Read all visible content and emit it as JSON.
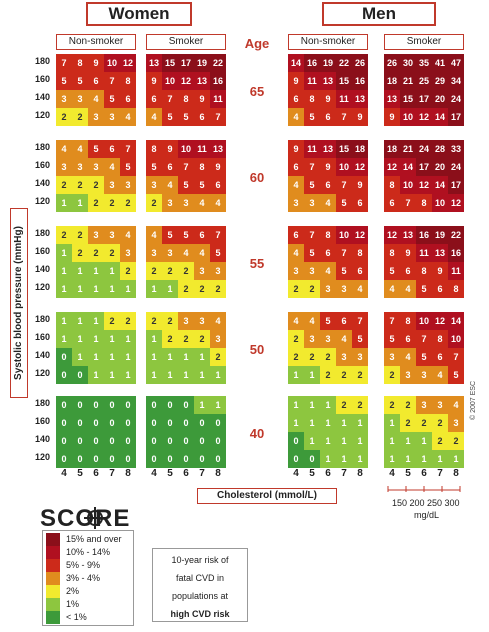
{
  "header": {
    "women": "Women",
    "men": "Men",
    "age_title": "Age"
  },
  "subheaders": {
    "women_nonsmoker": "Non-smoker",
    "women_smoker": "Smoker",
    "men_nonsmoker": "Non-smoker",
    "men_smoker": "Smoker"
  },
  "ylabel": "Systolic blood pressure (mmHg)",
  "xlabel": "Cholesterol (mmol/L)",
  "mgdl": {
    "values": "150 200 250 300",
    "unit": "mg/dL"
  },
  "copyright": "© 2007 ESC",
  "logo": "SCORE",
  "legend": [
    {
      "label": "15% and over",
      "color": "#8b0f1a"
    },
    {
      "label": "10% - 14%",
      "color": "#b01020"
    },
    {
      "label": "5% - 9%",
      "color": "#cc2a1a"
    },
    {
      "label": "3% - 4%",
      "color": "#e08c1e"
    },
    {
      "label": "2%",
      "color": "#f2ea2e"
    },
    {
      "label": "1%",
      "color": "#8dc63f"
    },
    {
      "label": "< 1%",
      "color": "#3d9a3a"
    }
  ],
  "note": [
    "10-year risk of",
    "fatal CVD in",
    "populations at",
    "high CVD risk"
  ],
  "chart_data": {
    "type": "heatmap",
    "cholesterol": [
      "4",
      "5",
      "6",
      "7",
      "8"
    ],
    "systolic_bp": [
      "180",
      "160",
      "140",
      "120"
    ],
    "ages": [
      "65",
      "60",
      "55",
      "50",
      "40"
    ],
    "groups": [
      "women_nonsmoker",
      "women_smoker",
      "men_nonsmoker",
      "men_smoker"
    ],
    "values": {
      "65": {
        "women_nonsmoker": [
          [
            7,
            8,
            9,
            10,
            12
          ],
          [
            5,
            5,
            6,
            7,
            8
          ],
          [
            3,
            3,
            4,
            5,
            6
          ],
          [
            2,
            2,
            3,
            3,
            4
          ]
        ],
        "women_smoker": [
          [
            13,
            15,
            17,
            19,
            22
          ],
          [
            9,
            10,
            12,
            13,
            16
          ],
          [
            6,
            7,
            8,
            9,
            11
          ],
          [
            4,
            5,
            5,
            6,
            7
          ]
        ],
        "men_nonsmoker": [
          [
            14,
            16,
            19,
            22,
            26
          ],
          [
            9,
            11,
            13,
            15,
            16
          ],
          [
            6,
            8,
            9,
            11,
            13
          ],
          [
            4,
            5,
            6,
            7,
            9
          ]
        ],
        "men_smoker": [
          [
            26,
            30,
            35,
            41,
            47
          ],
          [
            18,
            21,
            25,
            29,
            34
          ],
          [
            13,
            15,
            17,
            20,
            24
          ],
          [
            9,
            10,
            12,
            14,
            17
          ]
        ]
      },
      "60": {
        "women_nonsmoker": [
          [
            4,
            4,
            5,
            6,
            7
          ],
          [
            3,
            3,
            3,
            4,
            5
          ],
          [
            2,
            2,
            2,
            3,
            3
          ],
          [
            1,
            1,
            2,
            2,
            2
          ]
        ],
        "women_smoker": [
          [
            8,
            9,
            10,
            11,
            13
          ],
          [
            5,
            6,
            7,
            8,
            9
          ],
          [
            3,
            4,
            5,
            5,
            6
          ],
          [
            2,
            3,
            3,
            4,
            4
          ]
        ],
        "men_nonsmoker": [
          [
            9,
            11,
            13,
            15,
            18
          ],
          [
            6,
            7,
            9,
            10,
            12
          ],
          [
            4,
            5,
            6,
            7,
            9
          ],
          [
            3,
            3,
            4,
            5,
            6
          ]
        ],
        "men_smoker": [
          [
            18,
            21,
            24,
            28,
            33
          ],
          [
            12,
            14,
            17,
            20,
            24
          ],
          [
            8,
            10,
            12,
            14,
            17
          ],
          [
            6,
            7,
            8,
            10,
            12
          ]
        ]
      },
      "55": {
        "women_nonsmoker": [
          [
            2,
            2,
            3,
            3,
            4
          ],
          [
            1,
            2,
            2,
            2,
            3
          ],
          [
            1,
            1,
            1,
            1,
            2
          ],
          [
            1,
            1,
            1,
            1,
            1
          ]
        ],
        "women_smoker": [
          [
            4,
            5,
            5,
            6,
            7
          ],
          [
            3,
            3,
            4,
            4,
            5
          ],
          [
            2,
            2,
            2,
            3,
            3
          ],
          [
            1,
            1,
            2,
            2,
            2
          ]
        ],
        "men_nonsmoker": [
          [
            6,
            7,
            8,
            10,
            12
          ],
          [
            4,
            5,
            6,
            7,
            8
          ],
          [
            3,
            3,
            4,
            5,
            6
          ],
          [
            2,
            2,
            3,
            3,
            4
          ]
        ],
        "men_smoker": [
          [
            12,
            13,
            16,
            19,
            22
          ],
          [
            8,
            9,
            11,
            13,
            16
          ],
          [
            5,
            6,
            8,
            9,
            11
          ],
          [
            4,
            4,
            5,
            6,
            8
          ]
        ]
      },
      "50": {
        "women_nonsmoker": [
          [
            1,
            1,
            1,
            2,
            2
          ],
          [
            1,
            1,
            1,
            1,
            1
          ],
          [
            0,
            1,
            1,
            1,
            1
          ],
          [
            0,
            0,
            1,
            1,
            1
          ]
        ],
        "women_smoker": [
          [
            2,
            2,
            3,
            3,
            4
          ],
          [
            1,
            2,
            2,
            2,
            3
          ],
          [
            1,
            1,
            1,
            1,
            2
          ],
          [
            1,
            1,
            1,
            1,
            1
          ]
        ],
        "men_nonsmoker": [
          [
            4,
            4,
            5,
            6,
            7
          ],
          [
            2,
            3,
            3,
            4,
            5
          ],
          [
            2,
            2,
            2,
            3,
            3
          ],
          [
            1,
            1,
            2,
            2,
            2
          ]
        ],
        "men_smoker": [
          [
            7,
            8,
            10,
            12,
            14
          ],
          [
            5,
            6,
            7,
            8,
            10
          ],
          [
            3,
            4,
            5,
            6,
            7
          ],
          [
            2,
            3,
            3,
            4,
            5
          ]
        ]
      },
      "40": {
        "women_nonsmoker": [
          [
            0,
            0,
            0,
            0,
            0
          ],
          [
            0,
            0,
            0,
            0,
            0
          ],
          [
            0,
            0,
            0,
            0,
            0
          ],
          [
            0,
            0,
            0,
            0,
            0
          ]
        ],
        "women_smoker": [
          [
            0,
            0,
            0,
            1,
            1
          ],
          [
            0,
            0,
            0,
            0,
            0
          ],
          [
            0,
            0,
            0,
            0,
            0
          ],
          [
            0,
            0,
            0,
            0,
            0
          ]
        ],
        "men_nonsmoker": [
          [
            1,
            1,
            1,
            2,
            2
          ],
          [
            1,
            1,
            1,
            1,
            1
          ],
          [
            0,
            1,
            1,
            1,
            1
          ],
          [
            0,
            0,
            1,
            1,
            1
          ]
        ],
        "men_smoker": [
          [
            2,
            2,
            3,
            3,
            4
          ],
          [
            1,
            2,
            2,
            2,
            3
          ],
          [
            1,
            1,
            1,
            2,
            2
          ],
          [
            1,
            1,
            1,
            1,
            1
          ]
        ]
      }
    }
  }
}
